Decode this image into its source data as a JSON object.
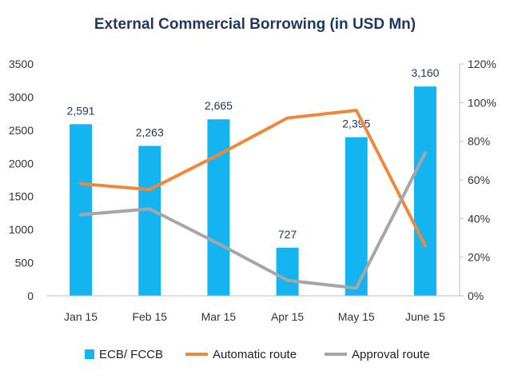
{
  "chart_data": {
    "type": "bar",
    "title": "External Commercial Borrowing (in USD Mn)",
    "categories": [
      "Jan 15",
      "Feb 15",
      "Mar 15",
      "Apr 15",
      "May 15",
      "June 15"
    ],
    "bars": {
      "name": "ECB/ FCCB",
      "values": [
        2591,
        2263,
        2665,
        727,
        2395,
        3160
      ],
      "labels": [
        "2,591",
        "2,263",
        "2,665",
        "727",
        "2,395",
        "3,160"
      ],
      "color": "#14B4F0"
    },
    "lines": [
      {
        "name": "Automatic route",
        "values": [
          0.58,
          0.55,
          0.73,
          0.92,
          0.96,
          0.26
        ],
        "color": "#F0883C"
      },
      {
        "name": "Approval route",
        "values": [
          0.42,
          0.45,
          0.27,
          0.08,
          0.04,
          0.74
        ],
        "color": "#A6A6A6"
      }
    ],
    "y_left": {
      "min": 0,
      "max": 3500,
      "ticks": [
        "0",
        "500",
        "1000",
        "1500",
        "2000",
        "2500",
        "3000",
        "3500"
      ]
    },
    "y_right": {
      "min": 0,
      "max": 1.2,
      "ticks": [
        "0%",
        "20%",
        "40%",
        "60%",
        "80%",
        "100%",
        "120%"
      ]
    },
    "grid": false,
    "legend_position": "bottom"
  }
}
